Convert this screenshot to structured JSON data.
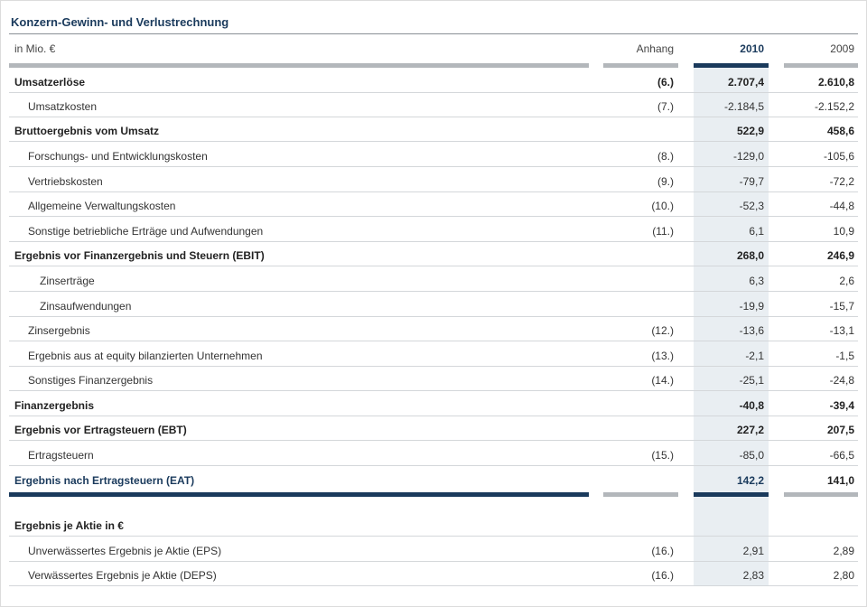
{
  "title": "Konzern-Gewinn- und Verlustrechnung",
  "header": {
    "label": "in Mio. €",
    "anhang": "Anhang",
    "year_current": "2010",
    "year_previous": "2009"
  },
  "rows": [
    {
      "label": "Umsatzerlöse",
      "anhang": "(6.)",
      "v2010": "2.707,4",
      "v2009": "2.610,8"
    },
    {
      "label": "Umsatzkosten",
      "anhang": "(7.)",
      "v2010": "-2.184,5",
      "v2009": "-2.152,2"
    },
    {
      "label": "Bruttoergebnis vom Umsatz",
      "anhang": "",
      "v2010": "522,9",
      "v2009": "458,6"
    },
    {
      "label": "Forschungs- und Entwicklungskosten",
      "anhang": "(8.)",
      "v2010": "-129,0",
      "v2009": "-105,6"
    },
    {
      "label": "Vertriebskosten",
      "anhang": "(9.)",
      "v2010": "-79,7",
      "v2009": "-72,2"
    },
    {
      "label": "Allgemeine Verwaltungskosten",
      "anhang": "(10.)",
      "v2010": "-52,3",
      "v2009": "-44,8"
    },
    {
      "label": "Sonstige betriebliche Erträge und Aufwendungen",
      "anhang": "(11.)",
      "v2010": "6,1",
      "v2009": "10,9"
    },
    {
      "label": "Ergebnis vor Finanzergebnis und Steuern (EBIT)",
      "anhang": "",
      "v2010": "268,0",
      "v2009": "246,9"
    },
    {
      "label": "Zinserträge",
      "anhang": "",
      "v2010": "6,3",
      "v2009": "2,6"
    },
    {
      "label": "Zinsaufwendungen",
      "anhang": "",
      "v2010": "-19,9",
      "v2009": "-15,7"
    },
    {
      "label": "Zinsergebnis",
      "anhang": "(12.)",
      "v2010": "-13,6",
      "v2009": "-13,1"
    },
    {
      "label": "Ergebnis aus at equity bilanzierten Unternehmen",
      "anhang": "(13.)",
      "v2010": "-2,1",
      "v2009": "-1,5"
    },
    {
      "label": "Sonstiges Finanzergebnis",
      "anhang": "(14.)",
      "v2010": "-25,1",
      "v2009": "-24,8"
    },
    {
      "label": "Finanzergebnis",
      "anhang": "",
      "v2010": "-40,8",
      "v2009": "-39,4"
    },
    {
      "label": "Ergebnis vor Ertragsteuern (EBT)",
      "anhang": "",
      "v2010": "227,2",
      "v2009": "207,5"
    },
    {
      "label": "Ertragsteuern",
      "anhang": "(15.)",
      "v2010": "-85,0",
      "v2009": "-66,5"
    },
    {
      "label": "Ergebnis nach Ertragsteuern (EAT)",
      "anhang": "",
      "v2010": "142,2",
      "v2009": "141,0"
    }
  ],
  "eps": {
    "heading": "Ergebnis je Aktie in €",
    "rows": [
      {
        "label": "Unverwässertes Ergebnis je Aktie (EPS)",
        "anhang": "(16.)",
        "v2010": "2,91",
        "v2009": "2,89"
      },
      {
        "label": "Verwässertes Ergebnis je Aktie (DEPS)",
        "anhang": "(16.)",
        "v2010": "2,83",
        "v2009": "2,80"
      }
    ]
  },
  "colors": {
    "accent": "#1a3a5c",
    "rule": "#b3b7bb",
    "highlight": "#e9eef2"
  }
}
